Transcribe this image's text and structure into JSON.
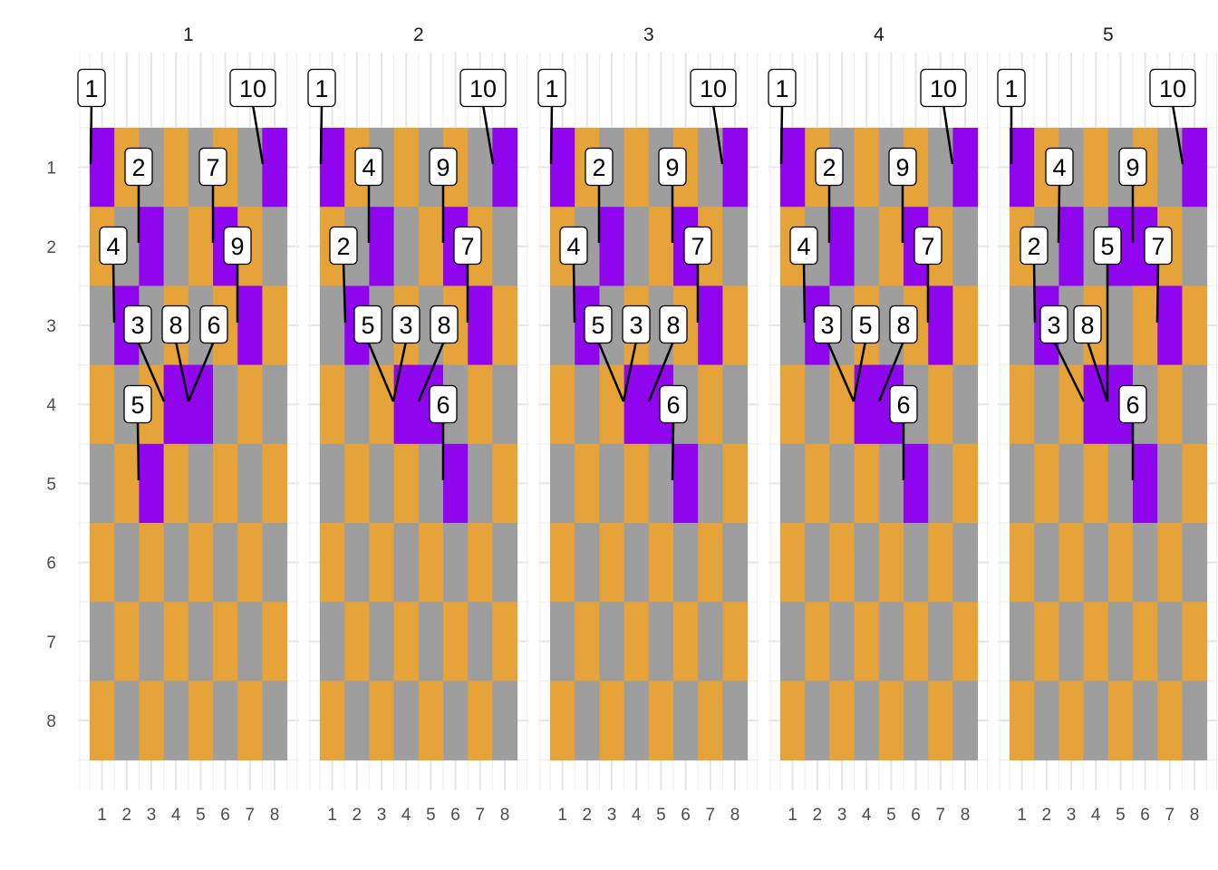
{
  "chart_data": {
    "type": "heatmap",
    "title": "",
    "xlabel": "",
    "ylabel": "",
    "x_ticks": [
      1,
      2,
      3,
      4,
      5,
      6,
      7,
      8
    ],
    "y_ticks": [
      1,
      2,
      3,
      4,
      5,
      6,
      7,
      8
    ],
    "y_reversed": true,
    "grid": true,
    "legend": "none",
    "colors": {
      "dark": "#9e9e9e",
      "light": "#e5a33a",
      "highlight": "#8f05ee",
      "label_fill": "#ffffff",
      "label_border": "#000000",
      "leader": "#000000"
    },
    "note_colors": "Base board alternates gray (x+y even) and orange (x+y odd); listed cells are purple.",
    "panels": [
      {
        "strip": "1",
        "highlight_cells": [
          [
            1,
            1
          ],
          [
            8,
            1
          ],
          [
            3,
            2
          ],
          [
            6,
            2
          ],
          [
            2,
            3
          ],
          [
            7,
            3
          ],
          [
            4,
            4
          ],
          [
            5,
            4
          ],
          [
            3,
            5
          ]
        ],
        "labels": [
          {
            "text": "1",
            "x": 1,
            "y": 1
          },
          {
            "text": "10",
            "x": 8,
            "y": 1
          },
          {
            "text": "2",
            "x": 3,
            "y": 2
          },
          {
            "text": "7",
            "x": 6,
            "y": 2
          },
          {
            "text": "4",
            "x": 2,
            "y": 3
          },
          {
            "text": "9",
            "x": 7,
            "y": 3
          },
          {
            "text": "3",
            "x": 4,
            "y": 4
          },
          {
            "text": "8",
            "x": 5,
            "y": 4
          },
          {
            "text": "6",
            "x": 5,
            "y": 4
          },
          {
            "text": "5",
            "x": 3,
            "y": 5
          }
        ]
      },
      {
        "strip": "2",
        "highlight_cells": [
          [
            1,
            1
          ],
          [
            8,
            1
          ],
          [
            3,
            2
          ],
          [
            6,
            2
          ],
          [
            2,
            3
          ],
          [
            7,
            3
          ],
          [
            4,
            4
          ],
          [
            5,
            4
          ],
          [
            6,
            5
          ]
        ],
        "labels": [
          {
            "text": "1",
            "x": 1,
            "y": 1
          },
          {
            "text": "10",
            "x": 8,
            "y": 1
          },
          {
            "text": "4",
            "x": 3,
            "y": 2
          },
          {
            "text": "9",
            "x": 6,
            "y": 2
          },
          {
            "text": "2",
            "x": 2,
            "y": 3
          },
          {
            "text": "7",
            "x": 7,
            "y": 3
          },
          {
            "text": "5",
            "x": 4,
            "y": 4
          },
          {
            "text": "3",
            "x": 4,
            "y": 4
          },
          {
            "text": "8",
            "x": 5,
            "y": 4
          },
          {
            "text": "6",
            "x": 6,
            "y": 5
          }
        ]
      },
      {
        "strip": "3",
        "highlight_cells": [
          [
            1,
            1
          ],
          [
            8,
            1
          ],
          [
            3,
            2
          ],
          [
            6,
            2
          ],
          [
            2,
            3
          ],
          [
            7,
            3
          ],
          [
            4,
            4
          ],
          [
            5,
            4
          ],
          [
            6,
            5
          ]
        ],
        "labels": [
          {
            "text": "1",
            "x": 1,
            "y": 1
          },
          {
            "text": "10",
            "x": 8,
            "y": 1
          },
          {
            "text": "2",
            "x": 3,
            "y": 2
          },
          {
            "text": "9",
            "x": 6,
            "y": 2
          },
          {
            "text": "4",
            "x": 2,
            "y": 3
          },
          {
            "text": "7",
            "x": 7,
            "y": 3
          },
          {
            "text": "5",
            "x": 4,
            "y": 4
          },
          {
            "text": "3",
            "x": 4,
            "y": 4
          },
          {
            "text": "8",
            "x": 5,
            "y": 4
          },
          {
            "text": "6",
            "x": 6,
            "y": 5
          }
        ]
      },
      {
        "strip": "4",
        "highlight_cells": [
          [
            1,
            1
          ],
          [
            8,
            1
          ],
          [
            3,
            2
          ],
          [
            6,
            2
          ],
          [
            2,
            3
          ],
          [
            7,
            3
          ],
          [
            4,
            4
          ],
          [
            5,
            4
          ],
          [
            6,
            5
          ]
        ],
        "labels": [
          {
            "text": "1",
            "x": 1,
            "y": 1
          },
          {
            "text": "10",
            "x": 8,
            "y": 1
          },
          {
            "text": "2",
            "x": 3,
            "y": 2
          },
          {
            "text": "9",
            "x": 6,
            "y": 2
          },
          {
            "text": "4",
            "x": 2,
            "y": 3
          },
          {
            "text": "7",
            "x": 7,
            "y": 3
          },
          {
            "text": "3",
            "x": 4,
            "y": 4
          },
          {
            "text": "5",
            "x": 4,
            "y": 4
          },
          {
            "text": "8",
            "x": 5,
            "y": 4
          },
          {
            "text": "6",
            "x": 6,
            "y": 5
          }
        ]
      },
      {
        "strip": "5",
        "highlight_cells": [
          [
            1,
            1
          ],
          [
            8,
            1
          ],
          [
            3,
            2
          ],
          [
            6,
            2
          ],
          [
            2,
            3
          ],
          [
            7,
            3
          ],
          [
            4,
            4
          ],
          [
            5,
            4
          ],
          [
            6,
            5
          ],
          [
            5,
            2
          ]
        ],
        "labels": [
          {
            "text": "1",
            "x": 1,
            "y": 1
          },
          {
            "text": "10",
            "x": 8,
            "y": 1
          },
          {
            "text": "4",
            "x": 3,
            "y": 2
          },
          {
            "text": "9",
            "x": 6,
            "y": 2
          },
          {
            "text": "2",
            "x": 2,
            "y": 3
          },
          {
            "text": "5",
            "x": 5,
            "y": 2
          },
          {
            "text": "7",
            "x": 7,
            "y": 3
          },
          {
            "text": "3",
            "x": 4,
            "y": 4
          },
          {
            "text": "8",
            "x": 5,
            "y": 4
          },
          {
            "text": "6",
            "x": 6,
            "y": 5
          }
        ]
      }
    ]
  }
}
